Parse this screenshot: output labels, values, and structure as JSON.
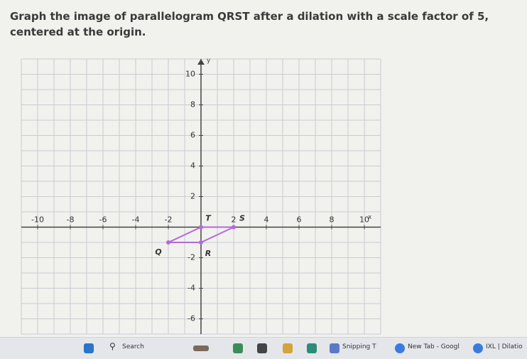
{
  "question": "Graph the image of parallelogram QRST after a dilation with a scale factor of 5, centered at the origin.",
  "graph": {
    "xlim": [
      -11,
      11
    ],
    "ylim": [
      -7,
      11
    ],
    "xticks": [
      -10,
      -8,
      -6,
      -4,
      -2,
      2,
      4,
      6,
      8,
      10
    ],
    "yticks": [
      -6,
      -4,
      -2,
      2,
      4,
      6,
      8,
      10
    ],
    "xlabel": "x",
    "ylabel": "y",
    "color": "#b36ad8",
    "points": [
      {
        "label": "Q",
        "x": -2,
        "y": -1
      },
      {
        "label": "R",
        "x": 0,
        "y": -1
      },
      {
        "label": "S",
        "x": 2,
        "y": 0
      },
      {
        "label": "T",
        "x": 0,
        "y": 0
      }
    ]
  },
  "taskbar": [
    "Search",
    "Snipping T",
    "New Tab - Googl",
    "IXL | Dilatio"
  ]
}
